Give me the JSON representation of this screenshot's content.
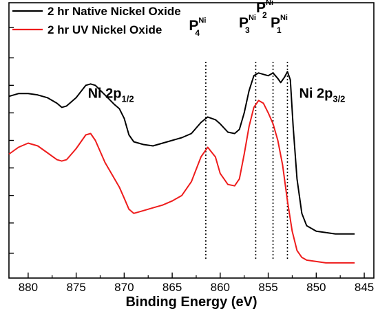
{
  "chart_data": {
    "type": "line",
    "xlabel": "Binding Energy (eV)",
    "ylabel": "",
    "xlim": [
      882,
      844
    ],
    "x_reversed": true,
    "ylim": [
      0,
      1
    ],
    "y_ticks_unlabeled": [
      0.09,
      0.2,
      0.3,
      0.4,
      0.5,
      0.6,
      0.7,
      0.8,
      0.91
    ],
    "x_ticks": [
      880,
      875,
      870,
      865,
      860,
      855,
      850,
      845
    ],
    "x_tick_labels": [
      "880",
      "875",
      "870",
      "865",
      "860",
      "855",
      "850",
      "845"
    ],
    "legend_position": "top-left",
    "series": [
      {
        "name": "2 hr Native Nickel Oxide",
        "color": "#000000",
        "points": [
          [
            882,
            0.66
          ],
          [
            881,
            0.67
          ],
          [
            880,
            0.67
          ],
          [
            879,
            0.665
          ],
          [
            878,
            0.655
          ],
          [
            877,
            0.635
          ],
          [
            876.5,
            0.62
          ],
          [
            876,
            0.625
          ],
          [
            875,
            0.655
          ],
          [
            874,
            0.7
          ],
          [
            873.5,
            0.705
          ],
          [
            873,
            0.7
          ],
          [
            872,
            0.665
          ],
          [
            871,
            0.63
          ],
          [
            870.5,
            0.615
          ],
          [
            870,
            0.58
          ],
          [
            869.5,
            0.52
          ],
          [
            869,
            0.495
          ],
          [
            868,
            0.485
          ],
          [
            867,
            0.48
          ],
          [
            866,
            0.49
          ],
          [
            865,
            0.5
          ],
          [
            864,
            0.51
          ],
          [
            863,
            0.525
          ],
          [
            862,
            0.565
          ],
          [
            861.3,
            0.585
          ],
          [
            860.5,
            0.575
          ],
          [
            860,
            0.56
          ],
          [
            859.2,
            0.53
          ],
          [
            858.5,
            0.525
          ],
          [
            858,
            0.54
          ],
          [
            857.5,
            0.6
          ],
          [
            857,
            0.68
          ],
          [
            856.5,
            0.735
          ],
          [
            856,
            0.745
          ],
          [
            855.5,
            0.74
          ],
          [
            855,
            0.735
          ],
          [
            854.5,
            0.745
          ],
          [
            854,
            0.725
          ],
          [
            853.7,
            0.71
          ],
          [
            853.3,
            0.73
          ],
          [
            853,
            0.75
          ],
          [
            852.7,
            0.72
          ],
          [
            852.4,
            0.55
          ],
          [
            852,
            0.36
          ],
          [
            851.5,
            0.235
          ],
          [
            851,
            0.19
          ],
          [
            850,
            0.17
          ],
          [
            849,
            0.165
          ],
          [
            848,
            0.16
          ],
          [
            847,
            0.16
          ],
          [
            846,
            0.16
          ]
        ]
      },
      {
        "name": "2 hr UV Nickel Oxide",
        "color": "#ee1c1c",
        "points": [
          [
            882,
            0.45
          ],
          [
            881,
            0.475
          ],
          [
            880,
            0.49
          ],
          [
            879,
            0.48
          ],
          [
            878,
            0.455
          ],
          [
            877,
            0.43
          ],
          [
            876.5,
            0.425
          ],
          [
            876,
            0.43
          ],
          [
            875,
            0.47
          ],
          [
            874,
            0.52
          ],
          [
            873.5,
            0.525
          ],
          [
            873,
            0.5
          ],
          [
            872,
            0.42
          ],
          [
            871,
            0.36
          ],
          [
            870.5,
            0.33
          ],
          [
            870,
            0.29
          ],
          [
            869.5,
            0.25
          ],
          [
            869,
            0.235
          ],
          [
            868,
            0.245
          ],
          [
            867,
            0.255
          ],
          [
            866,
            0.265
          ],
          [
            865,
            0.28
          ],
          [
            864,
            0.3
          ],
          [
            863,
            0.35
          ],
          [
            862,
            0.44
          ],
          [
            861.3,
            0.475
          ],
          [
            860.5,
            0.44
          ],
          [
            860,
            0.38
          ],
          [
            859.2,
            0.34
          ],
          [
            858.5,
            0.335
          ],
          [
            858,
            0.36
          ],
          [
            857.5,
            0.45
          ],
          [
            857,
            0.55
          ],
          [
            856.5,
            0.62
          ],
          [
            856,
            0.645
          ],
          [
            855.5,
            0.635
          ],
          [
            855,
            0.6
          ],
          [
            854.5,
            0.56
          ],
          [
            854,
            0.5
          ],
          [
            853.5,
            0.41
          ],
          [
            853,
            0.28
          ],
          [
            852.5,
            0.17
          ],
          [
            852,
            0.1
          ],
          [
            851.5,
            0.075
          ],
          [
            851,
            0.065
          ],
          [
            850,
            0.06
          ],
          [
            849,
            0.055
          ],
          [
            848,
            0.055
          ],
          [
            847,
            0.055
          ],
          [
            846,
            0.055
          ]
        ]
      }
    ],
    "vlines": [
      861.5,
      856.3,
      854.5,
      853
    ],
    "annotations": [
      {
        "main": "P",
        "sup": "Ni",
        "sub": "4",
        "x": 861.5,
        "level": 0.9
      },
      {
        "main": "P",
        "sup": "Ni",
        "sub": "3",
        "x": 856.3,
        "level": 0.91
      },
      {
        "main": "P",
        "sup": "Ni",
        "sub": "2",
        "x": 854.5,
        "level": 0.965
      },
      {
        "main": "P",
        "sup": "Ni",
        "sub": "1",
        "x": 853,
        "level": 0.91
      },
      {
        "main": "Ni 2p",
        "sub": "1/2",
        "x": 874.5,
        "level": 0.655
      },
      {
        "main": "Ni 2p",
        "sub": "3/2",
        "x": 852.5,
        "level": 0.655
      }
    ]
  }
}
